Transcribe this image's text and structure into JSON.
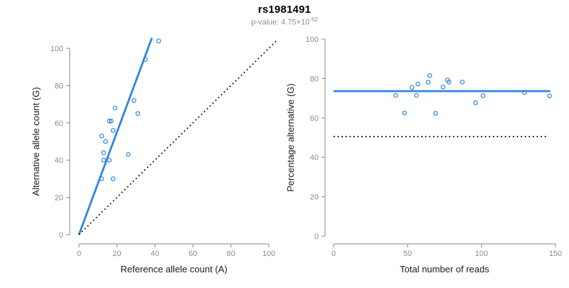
{
  "header": {
    "title": "rs1981491",
    "subtitle_prefix": "p-value: 4.75×10",
    "subtitle_exponent": "-62"
  },
  "style": {
    "accent_blue": "#2E86E0",
    "axis_color": "#9c9c9c",
    "tick_label_color": "#8c8c8c",
    "axis_title_color": "#1a1a1a",
    "dotted_line_color": "#000000"
  },
  "chart_data": [
    {
      "type": "scatter",
      "name": "allele-counts-plot",
      "xlabel": "Reference allele count (A)",
      "ylabel": "Alternative allele count (G)",
      "xlim": [
        0,
        100
      ],
      "ylim": [
        0,
        100
      ],
      "xticks": [
        0,
        20,
        40,
        60,
        80,
        100
      ],
      "yticks": [
        0,
        20,
        40,
        60,
        80,
        100
      ],
      "grid": false,
      "legend": null,
      "points": [
        [
          42,
          104
        ],
        [
          35,
          94
        ],
        [
          29,
          72
        ],
        [
          31,
          65
        ],
        [
          19,
          68
        ],
        [
          16,
          61
        ],
        [
          17,
          61
        ],
        [
          18,
          56
        ],
        [
          12,
          53
        ],
        [
          14,
          50
        ],
        [
          13,
          44
        ],
        [
          13,
          40
        ],
        [
          16,
          40
        ],
        [
          26,
          43
        ],
        [
          12,
          30
        ],
        [
          18,
          30
        ]
      ],
      "lines": [
        {
          "name": "fitted-ratio-line",
          "style": "solid",
          "color": "#2E86E0",
          "x1": 0,
          "y1": 0,
          "x2": 38.4,
          "y2": 105.6
        },
        {
          "name": "identity-line",
          "style": "dotted",
          "color": "#000000",
          "x1": 0,
          "y1": 0,
          "x2": 104,
          "y2": 104
        }
      ]
    },
    {
      "type": "scatter",
      "name": "percentage-vs-coverage-plot",
      "xlabel": "Total number of reads",
      "ylabel": "Percentage alternative (G)",
      "xlim": [
        0,
        150
      ],
      "ylim": [
        0,
        100
      ],
      "xticks": [
        0,
        50,
        100,
        150
      ],
      "yticks": [
        0,
        20,
        40,
        60,
        80,
        100
      ],
      "grid": false,
      "legend": null,
      "points": [
        [
          146,
          71.2
        ],
        [
          129,
          72.9
        ],
        [
          101,
          71.3
        ],
        [
          96,
          67.7
        ],
        [
          87,
          78.2
        ],
        [
          77,
          79.2
        ],
        [
          78,
          78.2
        ],
        [
          74,
          75.7
        ],
        [
          65,
          81.5
        ],
        [
          64,
          78.1
        ],
        [
          57,
          77.2
        ],
        [
          53,
          75.5
        ],
        [
          56,
          71.4
        ],
        [
          69,
          62.3
        ],
        [
          42,
          71.4
        ],
        [
          48,
          62.5
        ]
      ],
      "lines": [
        {
          "name": "mean-percentage-line",
          "style": "solid",
          "color": "#2E86E0",
          "x1": 0,
          "y1": 73.6,
          "x2": 146.5,
          "y2": 73.6
        },
        {
          "name": "fifty-percent-line",
          "style": "dotted",
          "color": "#000000",
          "x1": 0,
          "y1": 50.5,
          "x2": 144,
          "y2": 50.5
        }
      ]
    }
  ]
}
